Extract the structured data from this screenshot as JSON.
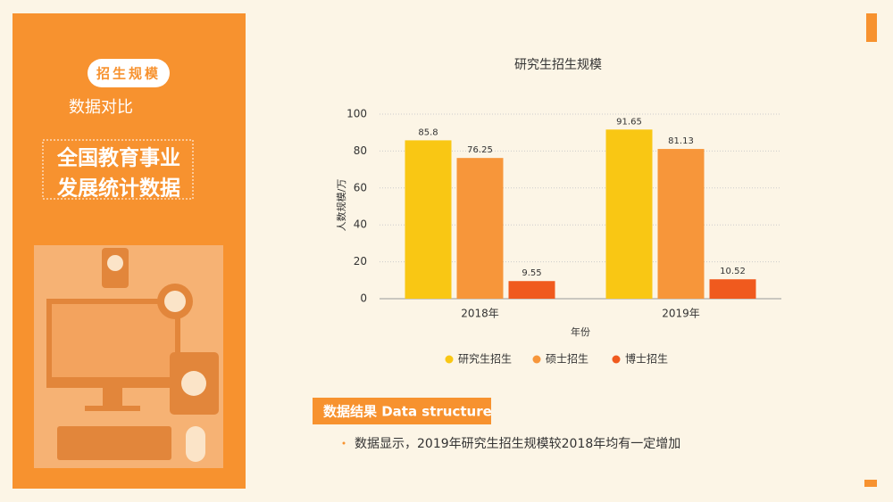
{
  "sidebar": {
    "tag": "招生规模",
    "subtitle": "数据对比",
    "headline": [
      "全国教育事业",
      "发展统计数据"
    ]
  },
  "chart_data": {
    "type": "bar",
    "title": "研究生招生规模",
    "categories": [
      "2018年",
      "2019年"
    ],
    "series": [
      {
        "name": "研究生招生",
        "color": "#f9c714",
        "values": [
          85.8,
          91.65
        ]
      },
      {
        "name": "硕士招生",
        "color": "#f7963a",
        "values": [
          76.25,
          81.13
        ]
      },
      {
        "name": "博士招生",
        "color": "#f05a1e",
        "values": [
          9.55,
          10.52
        ]
      }
    ],
    "x_label": "年份",
    "y_label": "人数规模/万",
    "ylim": [
      0,
      100
    ],
    "yticks": [
      0,
      20,
      40,
      60,
      80,
      100
    ],
    "grid": true,
    "legend": "bottom"
  },
  "footer": {
    "heading": "数据结果  Data structure",
    "bullet": "数据显示，2019年研究生招生规模较2018年均有一定增加"
  }
}
